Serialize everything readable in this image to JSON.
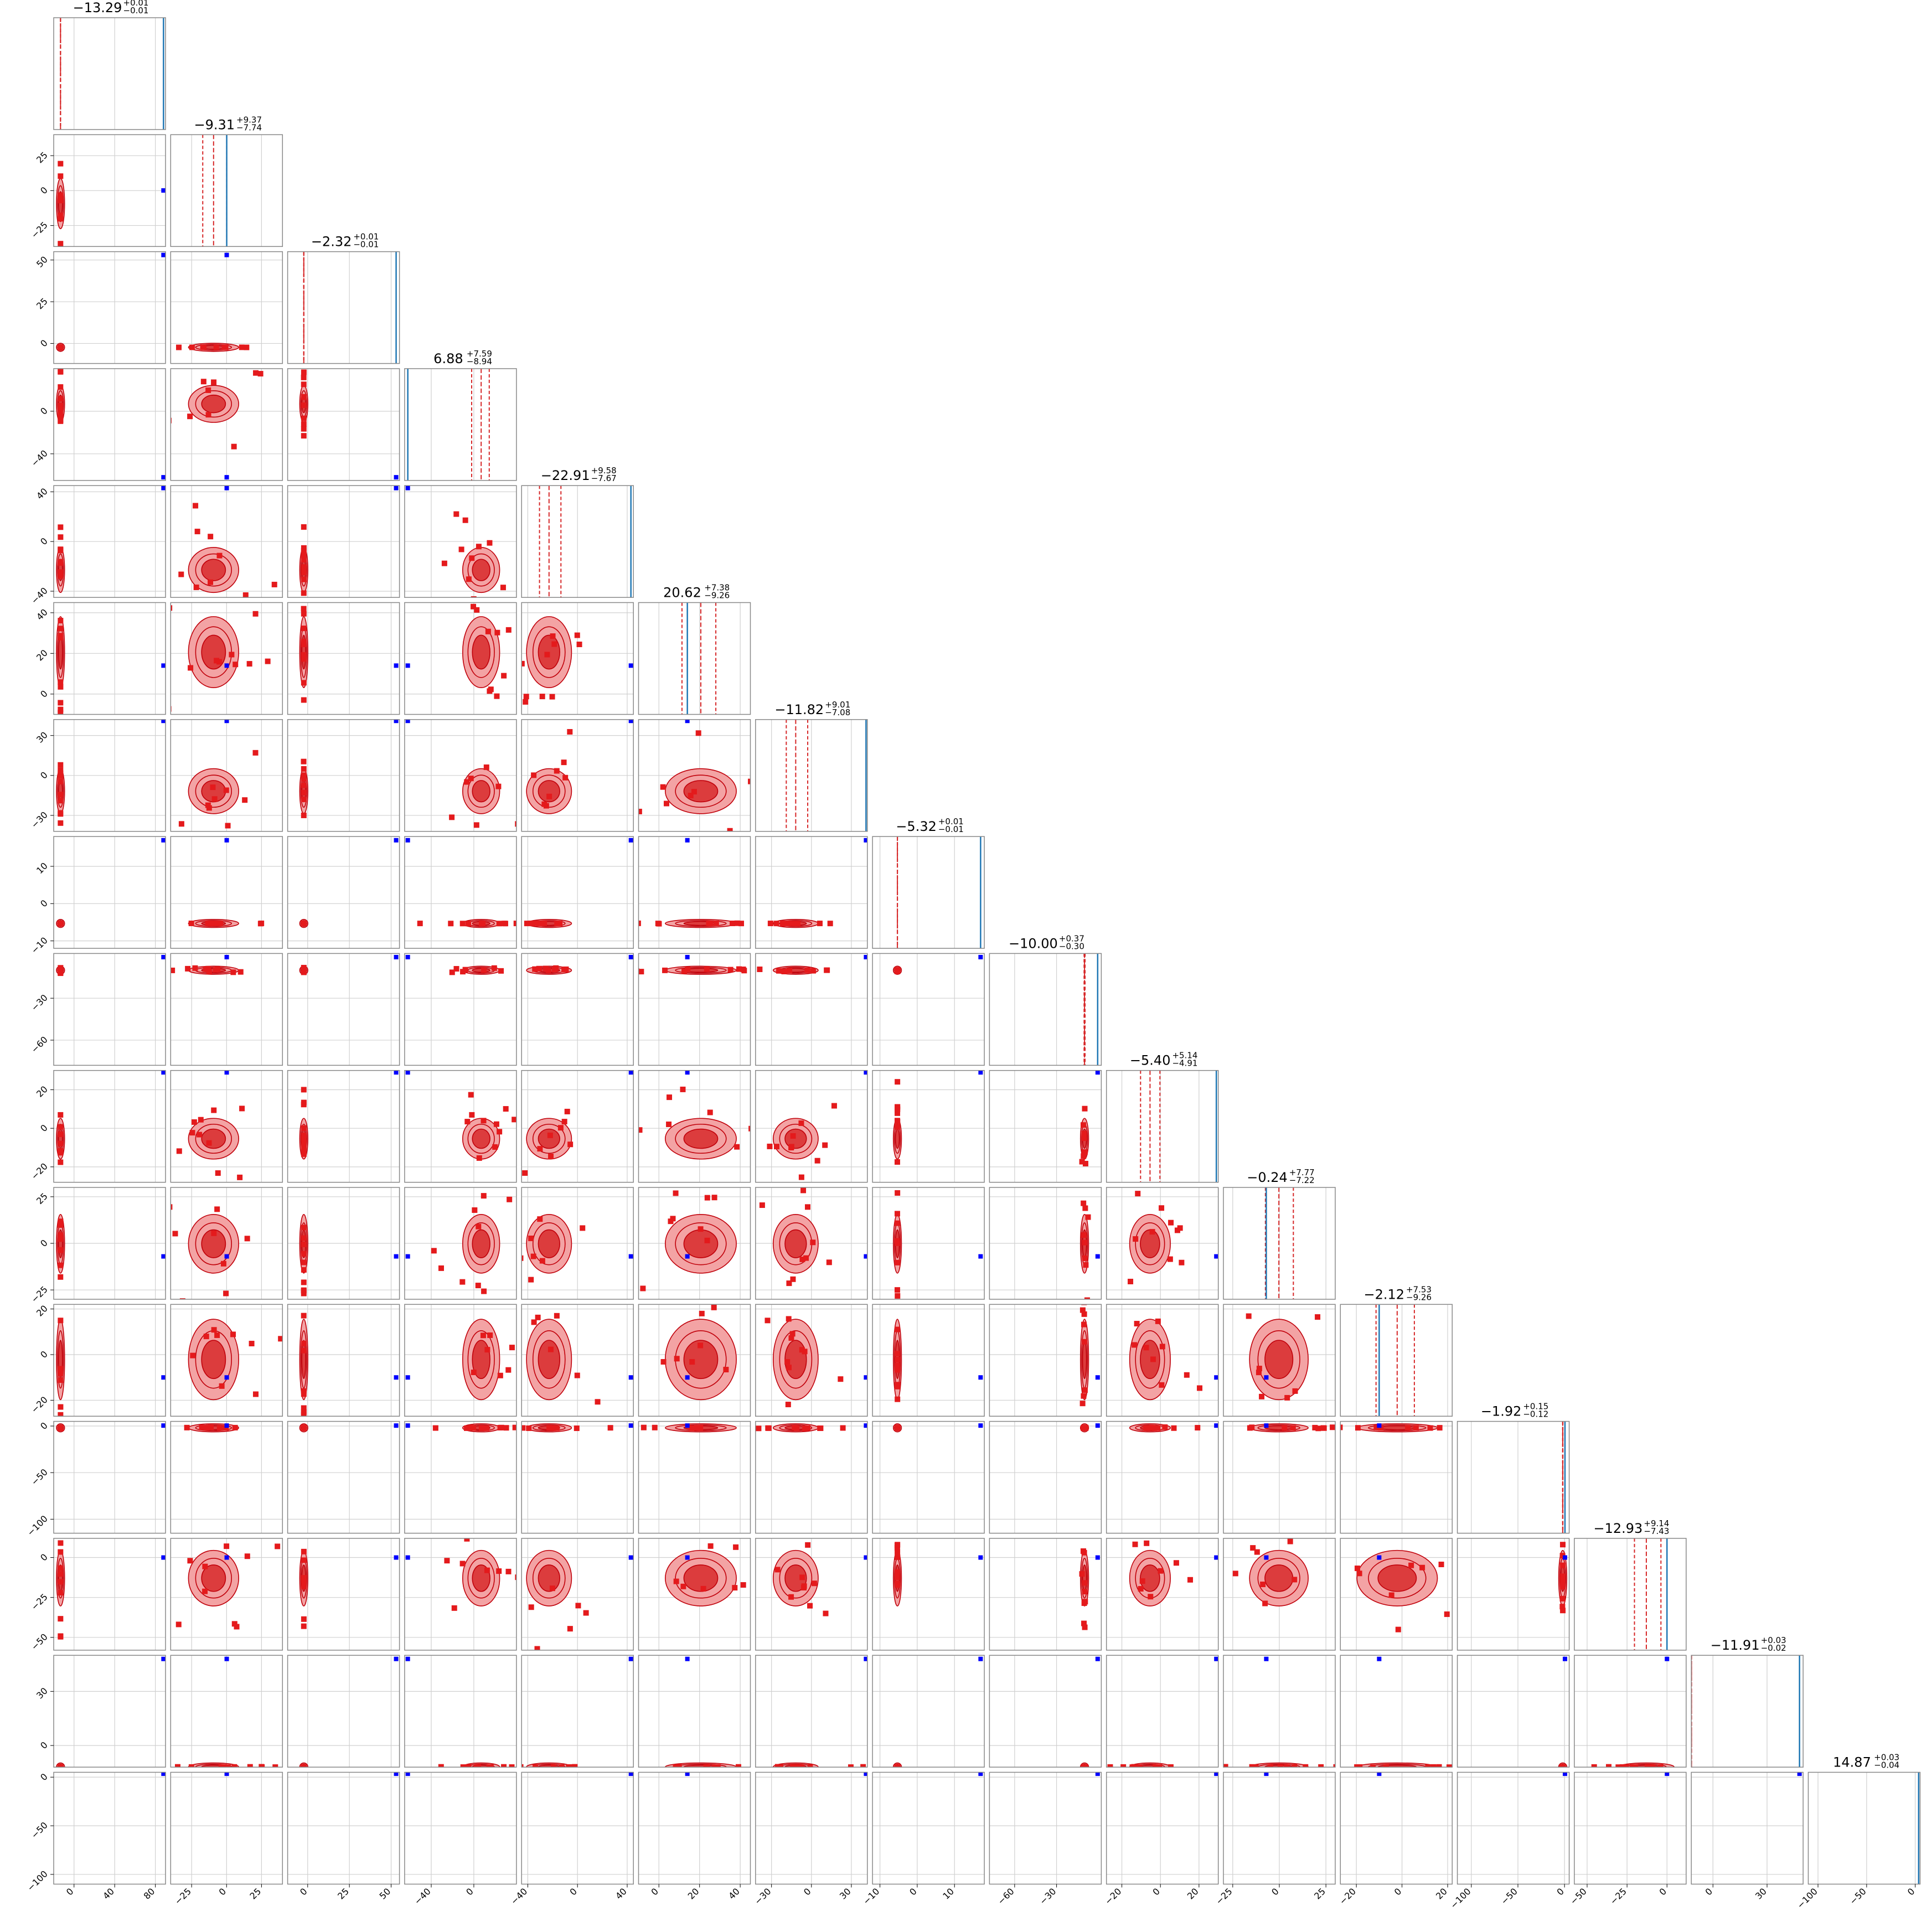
{
  "chart_data": {
    "type": "corner",
    "n_params": 16,
    "colors": {
      "samples": "#e41a1c",
      "fill_outer": "#f3a3a4",
      "fill_inner": "#dc3c3d",
      "contour": "#c0000a",
      "truth": "#1f77b4",
      "truth_marker": "#0000ff",
      "quantile": "#d62728",
      "grid": "#d0d0d0",
      "axis_frame": "#888888"
    },
    "grid": true,
    "titles": [
      {
        "median": "−13.29",
        "plus": "+0.01",
        "minus": "−0.01"
      },
      {
        "median": "−9.31",
        "plus": "+9.37",
        "minus": "−7.74"
      },
      {
        "median": "−2.32",
        "plus": "+0.01",
        "minus": "−0.01"
      },
      {
        "median": "6.88",
        "plus": "+7.59",
        "minus": "−8.94"
      },
      {
        "median": "−22.91",
        "plus": "+9.58",
        "minus": "−7.67"
      },
      {
        "median": "20.62",
        "plus": "+7.38",
        "minus": "−9.26"
      },
      {
        "median": "−11.82",
        "plus": "+9.01",
        "minus": "−7.08"
      },
      {
        "median": "−5.32",
        "plus": "+0.01",
        "minus": "−0.01"
      },
      {
        "median": "−10.00",
        "plus": "+0.37",
        "minus": "−0.30"
      },
      {
        "median": "−5.40",
        "plus": "+5.14",
        "minus": "−4.91"
      },
      {
        "median": "−0.24",
        "plus": "+7.77",
        "minus": "−7.22"
      },
      {
        "median": "−2.12",
        "plus": "+7.53",
        "minus": "−9.26"
      },
      {
        "median": "−1.92",
        "plus": "+0.15",
        "minus": "−0.12"
      },
      {
        "median": "−12.93",
        "plus": "+9.14",
        "minus": "−7.43"
      },
      {
        "median": "−11.91",
        "plus": "+0.03",
        "minus": "−0.02"
      },
      {
        "median": "14.87",
        "plus": "+0.03",
        "minus": "−0.04"
      }
    ],
    "ranges": [
      [
        -20,
        90
      ],
      [
        -40,
        40
      ],
      [
        -12,
        55
      ],
      [
        -65,
        40
      ],
      [
        -45,
        45
      ],
      [
        -10,
        45
      ],
      [
        -42,
        42
      ],
      [
        -12,
        18
      ],
      [
        -78,
        2
      ],
      [
        -28,
        30
      ],
      [
        -30,
        30
      ],
      [
        -27,
        22
      ],
      [
        -115,
        5
      ],
      [
        -58,
        12
      ],
      [
        -12,
        50
      ],
      [
        -110,
        5
      ]
    ],
    "x_ticks": [
      [
        "0",
        "40",
        "80"
      ],
      [
        "−25",
        "0",
        "25"
      ],
      [
        "0",
        "25",
        "50"
      ],
      [
        "−40",
        "0"
      ],
      [
        "−40",
        "0",
        "40"
      ],
      [
        "0",
        "20",
        "40"
      ],
      [
        "−30",
        "0",
        "30"
      ],
      [
        "−10",
        "0",
        "10"
      ],
      [
        "−60",
        "−30"
      ],
      [
        "−20",
        "0",
        "20"
      ],
      [
        "−25",
        "0",
        "25"
      ],
      [
        "−20",
        "0",
        "20"
      ],
      [
        "−100",
        "−50",
        "0"
      ],
      [
        "−50",
        "−25",
        "0"
      ],
      [
        "0",
        "30"
      ],
      [
        "−100",
        "−50",
        "0"
      ]
    ],
    "y_ticks": [
      [],
      [
        "−25",
        "0",
        "25"
      ],
      [
        "0",
        "25",
        "50"
      ],
      [
        "−40",
        "0"
      ],
      [
        "−40",
        "0",
        "40"
      ],
      [
        "0",
        "20",
        "40"
      ],
      [
        "−30",
        "0",
        "30"
      ],
      [
        "−10",
        "0",
        "10"
      ],
      [
        "−60",
        "−30"
      ],
      [
        "−20",
        "0",
        "20"
      ],
      [
        "−25",
        "0",
        "25"
      ],
      [
        "−20",
        "0",
        "20"
      ],
      [
        "−100",
        "−50",
        "0"
      ],
      [
        "−50",
        "−25",
        "0"
      ],
      [
        "0",
        "30"
      ],
      [
        "−100",
        "−50",
        "0"
      ]
    ],
    "quantiles": [
      [
        -13.3,
        -13.29,
        -13.28
      ],
      [
        -17.05,
        -9.31,
        0.06
      ],
      [
        -2.33,
        -2.32,
        -2.31
      ],
      [
        -2.06,
        6.88,
        14.47
      ],
      [
        -30.58,
        -22.91,
        -13.33
      ],
      [
        11.36,
        20.62,
        28.0
      ],
      [
        -18.9,
        -11.82,
        -2.81
      ],
      [
        -5.33,
        -5.32,
        -5.31
      ],
      [
        -10.3,
        -10.0,
        -9.63
      ],
      [
        -10.31,
        -5.4,
        -0.26
      ],
      [
        -7.46,
        -0.24,
        7.53
      ],
      [
        -11.38,
        -2.12,
        5.41
      ],
      [
        -2.04,
        -1.92,
        -1.77
      ],
      [
        -20.36,
        -12.93,
        -3.79
      ],
      [
        -11.93,
        -11.91,
        -11.88
      ],
      [
        14.83,
        14.87,
        14.9
      ]
    ],
    "truths": [
      88,
      0.1,
      53,
      -62,
      43,
      14,
      41,
      17,
      -0.6,
      29,
      -7,
      -10,
      0.5,
      0,
      48,
      3.5
    ]
  }
}
